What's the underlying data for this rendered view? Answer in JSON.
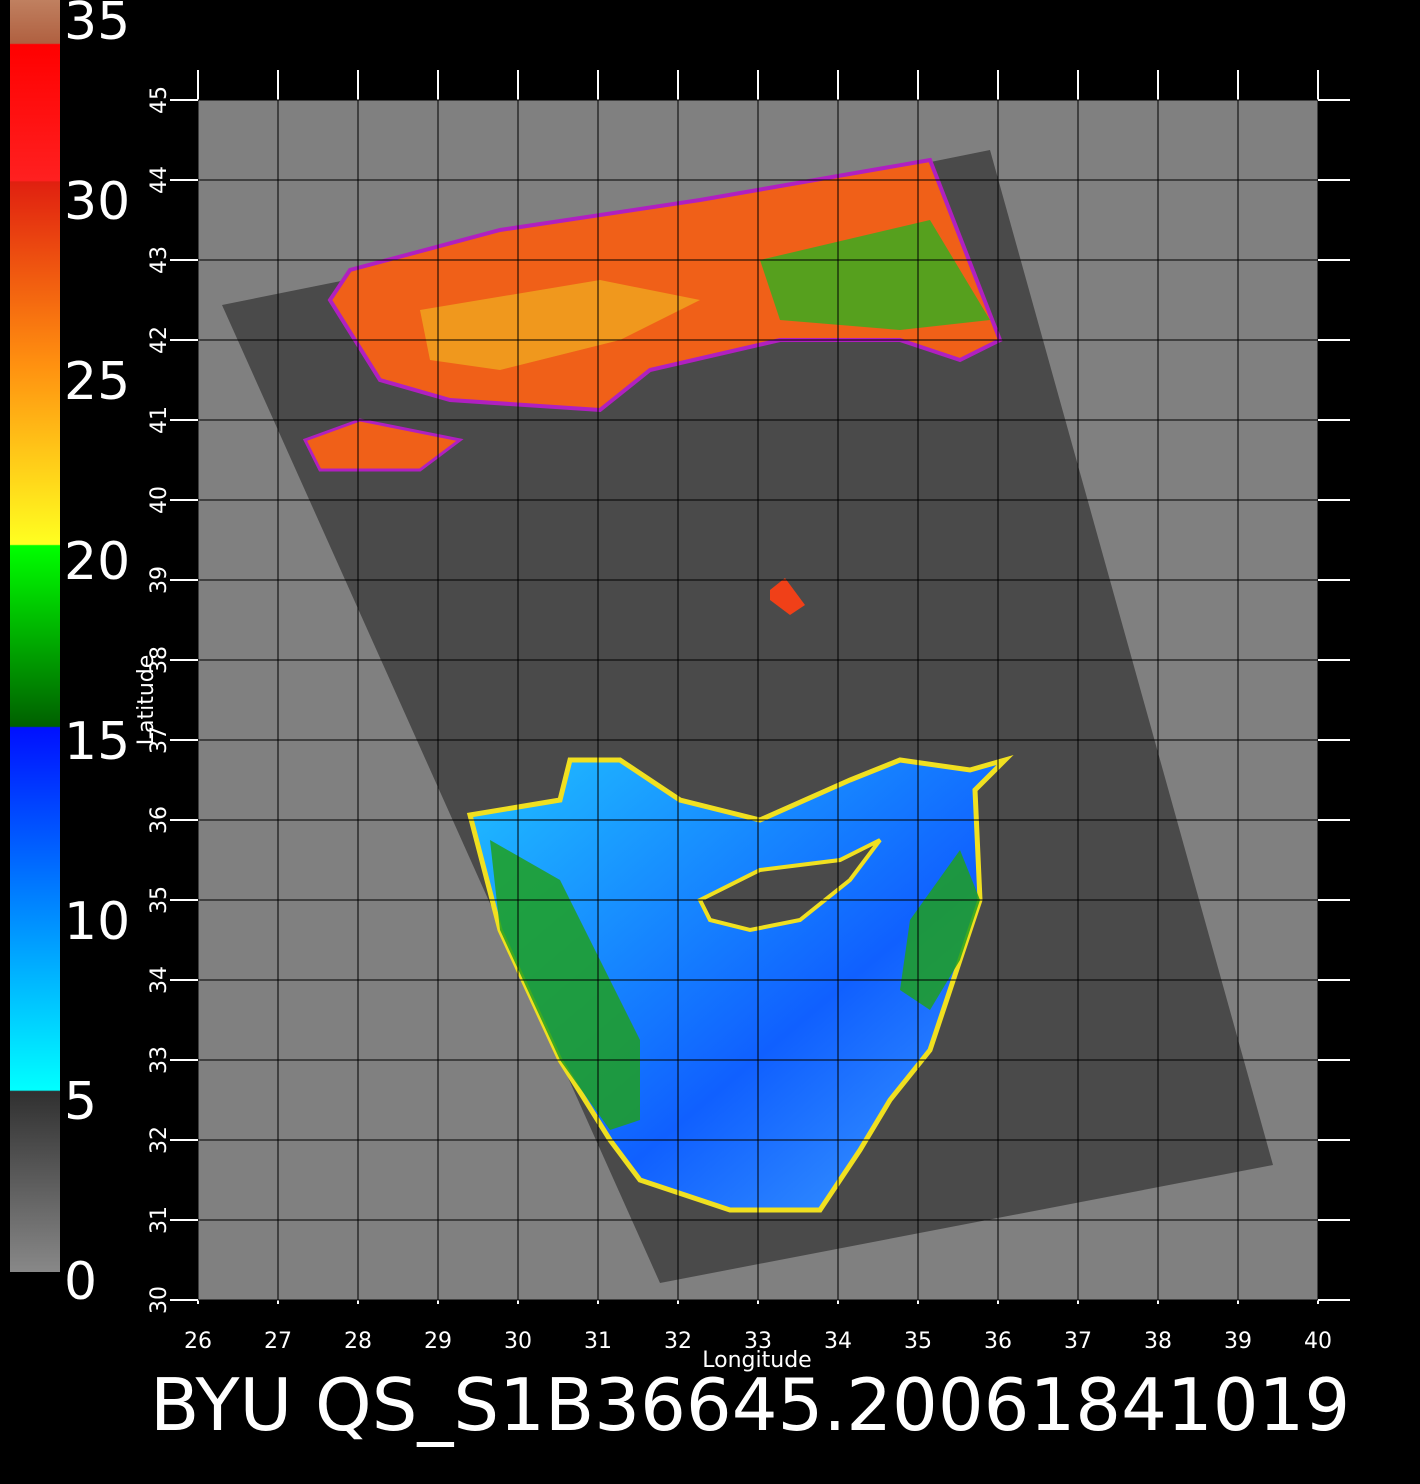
{
  "title": "BYU QS_S1B36645.2006184101​9",
  "colorbar": {
    "range": [
      0,
      35
    ],
    "ticks": [
      0,
      5,
      10,
      15,
      20,
      25,
      30,
      35
    ]
  },
  "map": {
    "xlabel": "Longitude",
    "ylabel": "Latitude",
    "xlim": [
      26,
      40
    ],
    "ylim": [
      30,
      45
    ],
    "xticks": [
      26,
      27,
      28,
      29,
      30,
      31,
      32,
      33,
      34,
      35,
      36,
      37,
      38,
      39,
      40
    ],
    "yticks": [
      30,
      31,
      32,
      33,
      34,
      35,
      36,
      37,
      38,
      39,
      40,
      41,
      42,
      43,
      44,
      45
    ]
  }
}
